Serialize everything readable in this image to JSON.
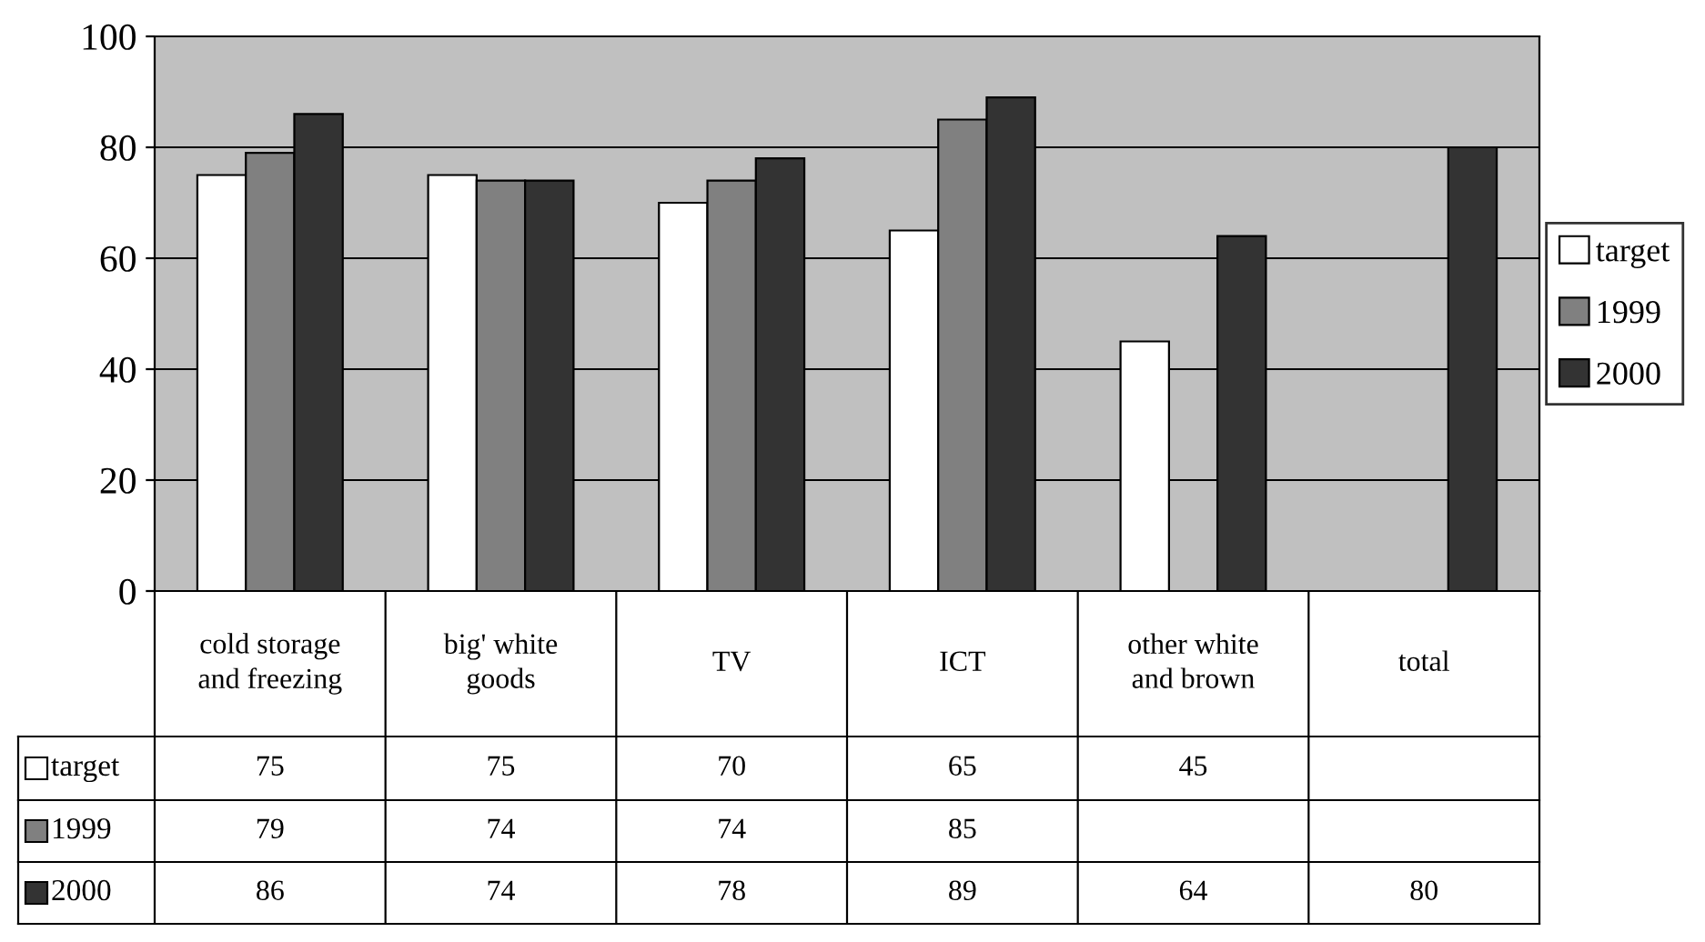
{
  "chart_data": {
    "type": "bar",
    "categories": [
      "cold storage\nand freezing",
      "big' white\ngoods",
      "TV",
      "ICT",
      "other white\nand brown",
      "total"
    ],
    "series": [
      {
        "name": "target",
        "color": "#ffffff",
        "values": [
          75,
          75,
          70,
          65,
          45,
          null
        ]
      },
      {
        "name": "1999",
        "color": "#808080",
        "values": [
          79,
          74,
          74,
          85,
          null,
          null
        ]
      },
      {
        "name": "2000",
        "color": "#333333",
        "values": [
          86,
          74,
          78,
          89,
          64,
          80
        ]
      }
    ],
    "ylim": [
      0,
      100
    ],
    "yticks": [
      0,
      20,
      40,
      60,
      80,
      100
    ],
    "grid": "y",
    "legend": "right",
    "data_labels": true
  }
}
